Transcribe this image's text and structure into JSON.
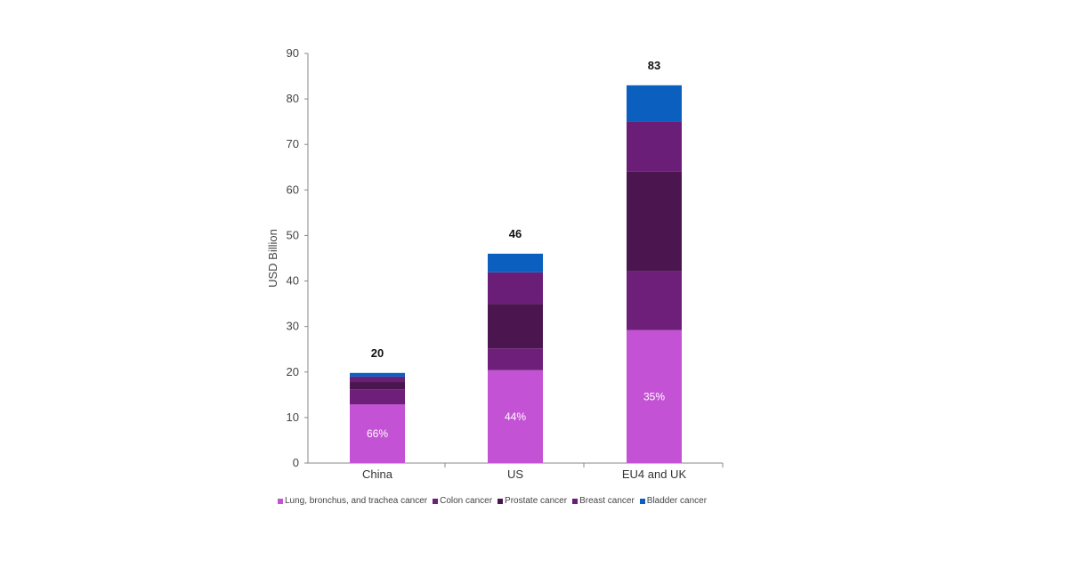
{
  "chart_data": {
    "type": "bar",
    "stacked": true,
    "ylabel": "USD Billion",
    "ylim": [
      0,
      90
    ],
    "yticks": [
      0,
      10,
      20,
      30,
      40,
      50,
      60,
      70,
      80,
      90
    ],
    "categories": [
      "China",
      "US",
      "EU4 and UK"
    ],
    "totals": [
      "20",
      "46",
      "83"
    ],
    "lung_share_labels": [
      "66%",
      "44%",
      "35%"
    ],
    "series": [
      {
        "name": "Lung, bronchus, and trachea cancer",
        "color": "#c452d4",
        "values": [
          12.9,
          20.4,
          29.2
        ]
      },
      {
        "name": "Colon cancer",
        "color": "#6e1f7a",
        "values": [
          3.3,
          4.8,
          12.9
        ]
      },
      {
        "name": "Prostate cancer",
        "color": "#4b1650",
        "values": [
          1.6,
          9.8,
          21.9
        ]
      },
      {
        "name": "Breast cancer",
        "color": "#6b1e78",
        "values": [
          1.2,
          6.9,
          11.1
        ]
      },
      {
        "name": "Bladder cancer",
        "color": "#0a5fbf",
        "values": [
          0.8,
          4.1,
          7.9
        ]
      }
    ],
    "legend_position": "bottom"
  }
}
